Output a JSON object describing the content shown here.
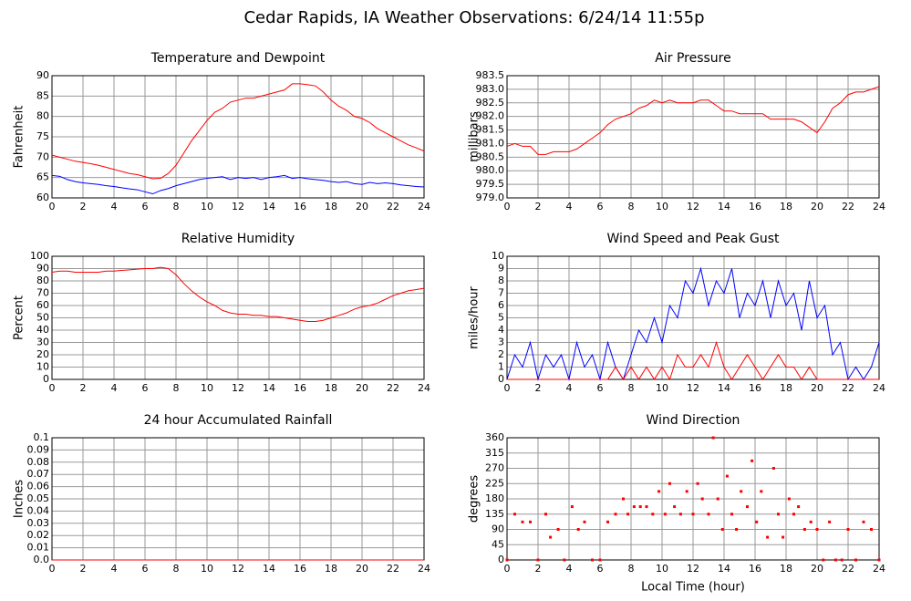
{
  "title": "Cedar Rapids, IA Weather Observations: 6/24/14 11:55p",
  "chart_data": [
    {
      "type": "line",
      "title": "Temperature and Dewpoint",
      "ylabel": "Fahrenheit",
      "x": [
        0,
        0.5,
        1,
        1.5,
        2,
        2.5,
        3,
        3.5,
        4,
        4.5,
        5,
        5.5,
        6,
        6.5,
        7,
        7.5,
        8,
        8.5,
        9,
        9.5,
        10,
        10.5,
        11,
        11.5,
        12,
        12.5,
        13,
        13.5,
        14,
        14.5,
        15,
        15.5,
        16,
        16.5,
        17,
        17.5,
        18,
        18.5,
        19,
        19.5,
        20,
        20.5,
        21,
        21.5,
        22,
        22.5,
        23,
        23.5,
        24
      ],
      "series": [
        {
          "color": "#ff0000",
          "values": [
            70.5,
            70,
            69.5,
            69,
            68.7,
            68.4,
            68,
            67.5,
            67,
            66.5,
            66,
            65.7,
            65.2,
            64.7,
            64.8,
            66,
            68,
            71,
            74,
            76.5,
            79,
            81,
            82,
            83.5,
            84,
            84.5,
            84.5,
            85,
            85.5,
            86,
            86.5,
            88,
            88,
            87.8,
            87.5,
            86,
            84,
            82.5,
            81.5,
            80,
            79.5,
            78.5,
            77,
            76,
            75,
            74,
            73,
            72.3,
            71.5
          ]
        },
        {
          "color": "#0000ff",
          "values": [
            65.5,
            65.3,
            64.5,
            64,
            63.7,
            63.5,
            63.3,
            63,
            62.8,
            62.5,
            62.2,
            62,
            61.5,
            61,
            61.8,
            62.3,
            63,
            63.5,
            64,
            64.5,
            64.8,
            65,
            65.2,
            64.5,
            65,
            64.8,
            65,
            64.5,
            65,
            65.2,
            65.5,
            64.8,
            65,
            64.7,
            64.5,
            64.3,
            64,
            63.8,
            64,
            63.5,
            63.3,
            63.8,
            63.5,
            63.7,
            63.5,
            63.2,
            63,
            62.8,
            62.7
          ]
        }
      ],
      "xlim": [
        0,
        24
      ],
      "xticks": [
        0,
        2,
        4,
        6,
        8,
        10,
        12,
        14,
        16,
        18,
        20,
        22,
        24
      ],
      "ylim": [
        60,
        90
      ],
      "yticks": [
        60,
        65,
        70,
        75,
        80,
        85,
        90
      ],
      "grid": true
    },
    {
      "type": "line",
      "title": "Air Pressure",
      "ylabel": "millibars",
      "x": [
        0,
        0.5,
        1,
        1.5,
        2,
        2.5,
        3,
        3.5,
        4,
        4.5,
        5,
        5.5,
        6,
        6.5,
        7,
        7.5,
        8,
        8.5,
        9,
        9.5,
        10,
        10.5,
        11,
        11.5,
        12,
        12.5,
        13,
        13.5,
        14,
        14.5,
        15,
        15.5,
        16,
        16.5,
        17,
        17.5,
        18,
        18.5,
        19,
        19.5,
        20,
        20.5,
        21,
        21.5,
        22,
        22.5,
        23,
        23.5,
        24
      ],
      "series": [
        {
          "color": "#ff0000",
          "values": [
            980.9,
            981.0,
            980.9,
            980.9,
            980.6,
            980.6,
            980.7,
            980.7,
            980.7,
            980.8,
            981.0,
            981.2,
            981.4,
            981.7,
            981.9,
            982.0,
            982.1,
            982.3,
            982.4,
            982.6,
            982.5,
            982.6,
            982.5,
            982.5,
            982.5,
            982.6,
            982.6,
            982.4,
            982.2,
            982.2,
            982.1,
            982.1,
            982.1,
            982.1,
            981.9,
            981.9,
            981.9,
            981.9,
            981.8,
            981.6,
            981.4,
            981.8,
            982.3,
            982.5,
            982.8,
            982.9,
            982.9,
            983.0,
            983.1
          ]
        }
      ],
      "xlim": [
        0,
        24
      ],
      "xticks": [
        0,
        2,
        4,
        6,
        8,
        10,
        12,
        14,
        16,
        18,
        20,
        22,
        24
      ],
      "ylim": [
        979,
        983.5
      ],
      "yticks": [
        {
          "value": 979,
          "label": "979.0"
        },
        979.5,
        {
          "value": 980,
          "label": "980.0"
        },
        980.5,
        {
          "value": 981,
          "label": "981.0"
        },
        981.5,
        {
          "value": 982,
          "label": "982.0"
        },
        982.5,
        {
          "value": 983,
          "label": "983.0"
        },
        983.5
      ],
      "grid": true
    },
    {
      "type": "line",
      "title": "Relative Humidity",
      "ylabel": "Percent",
      "x": [
        0,
        0.5,
        1,
        1.5,
        2,
        2.5,
        3,
        3.5,
        4,
        4.5,
        5,
        5.5,
        6,
        6.5,
        7,
        7.5,
        8,
        8.5,
        9,
        9.5,
        10,
        10.5,
        11,
        11.5,
        12,
        12.5,
        13,
        13.5,
        14,
        14.5,
        15,
        15.5,
        16,
        16.5,
        17,
        17.5,
        18,
        18.5,
        19,
        19.5,
        20,
        20.5,
        21,
        21.5,
        22,
        22.5,
        23,
        23.5,
        24
      ],
      "series": [
        {
          "color": "#ff0000",
          "values": [
            87,
            88,
            88,
            87,
            87,
            87,
            87,
            88,
            88,
            88.5,
            89,
            89.5,
            90,
            90,
            91,
            90,
            85,
            78,
            72,
            67,
            63,
            60,
            56,
            54,
            53,
            53,
            52,
            52,
            51,
            51,
            50,
            49,
            48,
            47,
            47,
            48,
            50,
            52,
            54,
            57,
            59,
            60,
            62,
            65,
            68,
            70,
            72,
            73,
            74
          ]
        }
      ],
      "xlim": [
        0,
        24
      ],
      "xticks": [
        0,
        2,
        4,
        6,
        8,
        10,
        12,
        14,
        16,
        18,
        20,
        22,
        24
      ],
      "ylim": [
        0,
        100
      ],
      "yticks": [
        0,
        10,
        20,
        30,
        40,
        50,
        60,
        70,
        80,
        90,
        100
      ],
      "grid": true
    },
    {
      "type": "line",
      "title": "Wind Speed and Peak Gust",
      "ylabel": "miles/hour",
      "x": [
        0,
        0.5,
        1,
        1.5,
        2,
        2.5,
        3,
        3.5,
        4,
        4.5,
        5,
        5.5,
        6,
        6.5,
        7,
        7.5,
        8,
        8.5,
        9,
        9.5,
        10,
        10.5,
        11,
        11.5,
        12,
        12.5,
        13,
        13.5,
        14,
        14.5,
        15,
        15.5,
        16,
        16.5,
        17,
        17.5,
        18,
        18.5,
        19,
        19.5,
        20,
        20.5,
        21,
        21.5,
        22,
        22.5,
        23,
        23.5,
        24
      ],
      "series": [
        {
          "color": "#0000ff",
          "values": [
            0,
            2,
            1,
            3,
            0,
            2,
            1,
            2,
            0,
            3,
            1,
            2,
            0,
            3,
            1,
            0,
            2,
            4,
            3,
            5,
            3,
            6,
            5,
            8,
            7,
            9,
            6,
            8,
            7,
            9,
            5,
            7,
            6,
            8,
            5,
            8,
            6,
            7,
            4,
            8,
            5,
            6,
            2,
            3,
            0,
            1,
            0,
            1,
            3
          ]
        },
        {
          "color": "#ff0000",
          "values": [
            0,
            0,
            0,
            0,
            0,
            0,
            0,
            0,
            0,
            0,
            0,
            0,
            0,
            0,
            1,
            0,
            1,
            0,
            1,
            0,
            1,
            0,
            2,
            1,
            1,
            2,
            1,
            3,
            1,
            0,
            1,
            2,
            1,
            0,
            1,
            2,
            1,
            1,
            0,
            1,
            0,
            0,
            0,
            0,
            0,
            0,
            0,
            0,
            0
          ]
        }
      ],
      "xlim": [
        0,
        24
      ],
      "xticks": [
        0,
        2,
        4,
        6,
        8,
        10,
        12,
        14,
        16,
        18,
        20,
        22,
        24
      ],
      "ylim": [
        0,
        10
      ],
      "yticks": [
        0,
        1,
        2,
        3,
        4,
        5,
        6,
        7,
        8,
        9,
        10
      ],
      "grid": true
    },
    {
      "type": "line",
      "title": "24 hour Accumulated Rainfall",
      "ylabel": "Inches",
      "x": [
        0,
        24
      ],
      "series": [
        {
          "color": "#ff0000",
          "values": [
            0,
            0
          ]
        }
      ],
      "xlim": [
        0,
        24
      ],
      "xticks": [
        0,
        2,
        4,
        6,
        8,
        10,
        12,
        14,
        16,
        18,
        20,
        22,
        24
      ],
      "ylim": [
        0,
        0.1
      ],
      "yticks": [
        {
          "value": 0,
          "label": "0.0"
        },
        0.01,
        0.02,
        0.03,
        0.04,
        0.05,
        0.06,
        0.07,
        0.08,
        0.09,
        0.1
      ],
      "grid": true
    },
    {
      "type": "scatter",
      "title": "Wind Direction",
      "ylabel": "degrees",
      "xlabel": "Local Time (hour)",
      "x": [
        0,
        0.5,
        1,
        1.5,
        2,
        2.5,
        2.8,
        3.3,
        3.7,
        4.2,
        4.6,
        5,
        5.5,
        6,
        6.5,
        7,
        7.5,
        7.8,
        8.2,
        8.6,
        9,
        9.4,
        9.8,
        10.2,
        10.5,
        10.8,
        11.2,
        11.6,
        12,
        12.3,
        12.6,
        13,
        13.3,
        13.6,
        13.9,
        14.2,
        14.5,
        14.8,
        15.1,
        15.5,
        15.8,
        16.1,
        16.4,
        16.8,
        17.2,
        17.5,
        17.8,
        18.2,
        18.5,
        18.8,
        19.2,
        19.6,
        20,
        20.4,
        20.8,
        21.2,
        21.6,
        22,
        22.5,
        23,
        23.5,
        24
      ],
      "series": [
        {
          "color": "#ff0000",
          "values": [
            0,
            135,
            112,
            112,
            0,
            135,
            67,
            90,
            0,
            157,
            90,
            112,
            0,
            0,
            112,
            135,
            180,
            135,
            157,
            157,
            157,
            135,
            202,
            135,
            225,
            157,
            135,
            202,
            135,
            225,
            180,
            135,
            360,
            180,
            90,
            247,
            135,
            90,
            202,
            157,
            292,
            112,
            202,
            67,
            270,
            135,
            67,
            180,
            135,
            157,
            90,
            112,
            90,
            0,
            112,
            0,
            0,
            90,
            0,
            112,
            90,
            0
          ]
        }
      ],
      "xlim": [
        0,
        24
      ],
      "xticks": [
        0,
        2,
        4,
        6,
        8,
        10,
        12,
        14,
        16,
        18,
        20,
        22,
        24
      ],
      "ylim": [
        0,
        360
      ],
      "yticks": [
        0,
        45,
        90,
        135,
        180,
        225,
        270,
        315,
        360
      ],
      "grid": true
    }
  ]
}
